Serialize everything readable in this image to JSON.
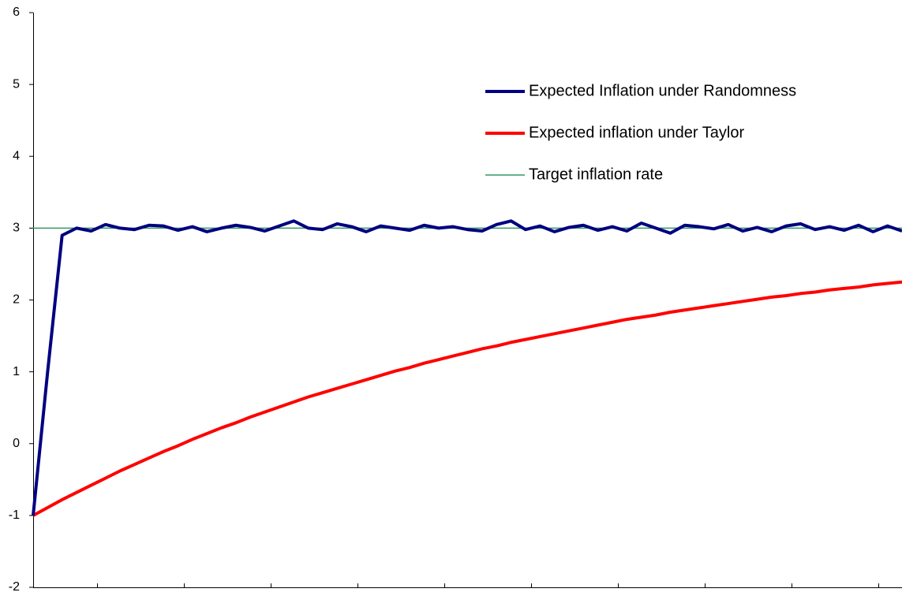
{
  "chart_data": {
    "type": "line",
    "categories": [
      null,
      null,
      null,
      null,
      null,
      null,
      null,
      null,
      null,
      null,
      null,
      null,
      null,
      null,
      null,
      null,
      null,
      null,
      null,
      null,
      null,
      null,
      null,
      null,
      null,
      null,
      null,
      null,
      null,
      null,
      null,
      null,
      null,
      null,
      null,
      null,
      null,
      null,
      null,
      null,
      null,
      null,
      null,
      null,
      null,
      null,
      null,
      null,
      null,
      null,
      null,
      null,
      null,
      null,
      null,
      null,
      null,
      null,
      null,
      null,
      null
    ],
    "series": [
      {
        "name": "Expected Inflation under Randomness",
        "color": "#000080",
        "width": 4,
        "values": [
          -1,
          1.0,
          2.9,
          3.0,
          2.96,
          3.05,
          3.0,
          2.98,
          3.04,
          3.03,
          2.97,
          3.02,
          2.95,
          3.0,
          3.04,
          3.01,
          2.96,
          3.03,
          3.1,
          3.0,
          2.98,
          3.06,
          3.02,
          2.95,
          3.03,
          3.0,
          2.97,
          3.04,
          3.0,
          3.02,
          2.98,
          2.96,
          3.05,
          3.1,
          2.98,
          3.03,
          2.95,
          3.01,
          3.04,
          2.97,
          3.02,
          2.96,
          3.07,
          3.0,
          2.93,
          3.04,
          3.02,
          2.99,
          3.05,
          2.96,
          3.01,
          2.95,
          3.03,
          3.06,
          2.98,
          3.02,
          2.97,
          3.04,
          2.95,
          3.03,
          2.96
        ]
      },
      {
        "name": "Expected inflation under Taylor",
        "color": "#ff0000",
        "width": 4,
        "values": [
          -1,
          -0.89,
          -0.78,
          -0.68,
          -0.58,
          -0.48,
          -0.38,
          -0.29,
          -0.2,
          -0.11,
          -0.03,
          0.06,
          0.14,
          0.22,
          0.29,
          0.37,
          0.44,
          0.51,
          0.58,
          0.65,
          0.71,
          0.77,
          0.83,
          0.89,
          0.95,
          1.01,
          1.06,
          1.12,
          1.17,
          1.22,
          1.27,
          1.32,
          1.36,
          1.41,
          1.45,
          1.49,
          1.53,
          1.57,
          1.61,
          1.65,
          1.69,
          1.73,
          1.76,
          1.79,
          1.83,
          1.86,
          1.89,
          1.92,
          1.95,
          1.98,
          2.01,
          2.04,
          2.06,
          2.09,
          2.11,
          2.14,
          2.16,
          2.18,
          2.21,
          2.23,
          2.25
        ]
      },
      {
        "name": "Target inflation rate",
        "color": "#339966",
        "width": 1.5,
        "values": [
          3,
          3,
          3,
          3,
          3,
          3,
          3,
          3,
          3,
          3,
          3,
          3,
          3,
          3,
          3,
          3,
          3,
          3,
          3,
          3,
          3,
          3,
          3,
          3,
          3,
          3,
          3,
          3,
          3,
          3,
          3,
          3,
          3,
          3,
          3,
          3,
          3,
          3,
          3,
          3,
          3,
          3,
          3,
          3,
          3,
          3,
          3,
          3,
          3,
          3,
          3,
          3,
          3,
          3,
          3,
          3,
          3,
          3,
          3,
          3,
          3
        ]
      }
    ],
    "ylim": [
      -2,
      6
    ],
    "yticks": [
      -2,
      -1,
      0,
      1,
      2,
      3,
      4,
      5,
      6
    ],
    "grid": false,
    "legend": "upper right"
  }
}
